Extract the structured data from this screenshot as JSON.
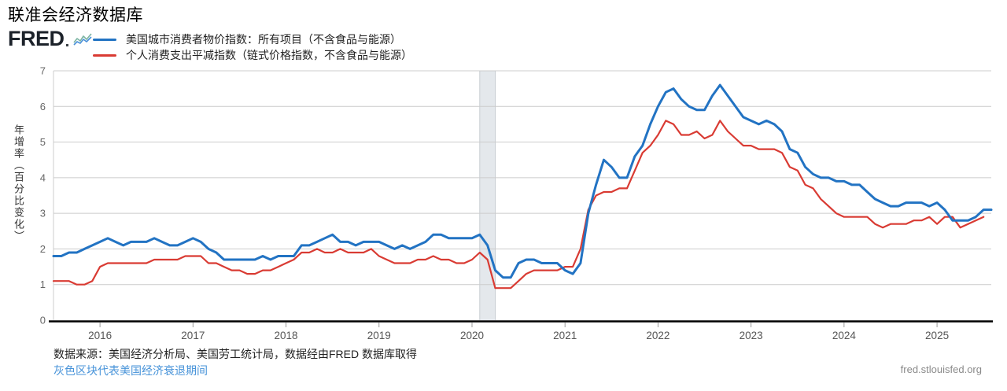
{
  "header": {
    "title": "联准会经济数据库",
    "logo_text": "FRED"
  },
  "legend": {
    "items": [
      {
        "label": "美国城市消费者物价指数：所有项目（不含食品与能源）",
        "color": "#2273c3"
      },
      {
        "label": "个人消费支出平减指数（链式价格指数，不含食品与能源）",
        "color": "#d93b33"
      }
    ]
  },
  "footer": {
    "source": "数据来源：美国经济分析局、美国劳工统计局，数据经由FRED 数据库取得",
    "recession_note": "灰色区块代表美国经济衰退期间",
    "site": "fred.stlouisfed.org"
  },
  "colors": {
    "band_fill": "#e4e8ec",
    "band_edge": "#c8cdd2",
    "grid": "#cccccc",
    "axis": "#000000",
    "tick_text": "#666666",
    "x_tick_text": "#555555",
    "link": "#4793d9"
  },
  "chart_data": {
    "type": "line",
    "title": "联准会经济数据库",
    "xlabel": "",
    "ylabel": "年增率（百分比变化）",
    "ylim": [
      0,
      7
    ],
    "yticks": [
      0,
      1,
      2,
      3,
      4,
      5,
      6,
      7
    ],
    "xlim": [
      2015.5,
      2025.583
    ],
    "xticks": [
      2016,
      2017,
      2018,
      2019,
      2020,
      2021,
      2022,
      2023,
      2024,
      2025
    ],
    "grid": true,
    "legend_position": "top-left",
    "frequency": "monthly",
    "recession_bands": [
      {
        "start": 2020.083,
        "end": 2020.25
      }
    ],
    "recession_note": "灰色区块代表美国经济衰退期间",
    "series": [
      {
        "name": "美国城市消费者物价指数：所有项目（不含食品与能源）",
        "color": "#2273c3",
        "start": 2015.5,
        "start_label": "2015-07",
        "end_label": "2025-08",
        "values": [
          1.8,
          1.8,
          1.9,
          1.9,
          2.0,
          2.1,
          2.2,
          2.3,
          2.2,
          2.1,
          2.2,
          2.2,
          2.2,
          2.3,
          2.2,
          2.1,
          2.1,
          2.2,
          2.3,
          2.2,
          2.0,
          1.9,
          1.7,
          1.7,
          1.7,
          1.7,
          1.7,
          1.8,
          1.7,
          1.8,
          1.8,
          1.8,
          2.1,
          2.1,
          2.2,
          2.3,
          2.4,
          2.2,
          2.2,
          2.1,
          2.2,
          2.2,
          2.2,
          2.1,
          2.0,
          2.1,
          2.0,
          2.1,
          2.2,
          2.4,
          2.4,
          2.3,
          2.3,
          2.3,
          2.3,
          2.4,
          2.1,
          1.4,
          1.2,
          1.2,
          1.6,
          1.7,
          1.7,
          1.6,
          1.6,
          1.6,
          1.4,
          1.3,
          1.6,
          3.0,
          3.8,
          4.5,
          4.3,
          4.0,
          4.0,
          4.6,
          4.9,
          5.5,
          6.0,
          6.4,
          6.5,
          6.2,
          6.0,
          5.9,
          5.9,
          6.3,
          6.6,
          6.3,
          6.0,
          5.7,
          5.6,
          5.5,
          5.6,
          5.5,
          5.3,
          4.8,
          4.7,
          4.3,
          4.1,
          4.0,
          4.0,
          3.9,
          3.9,
          3.8,
          3.8,
          3.6,
          3.4,
          3.3,
          3.2,
          3.2,
          3.3,
          3.3,
          3.3,
          3.2,
          3.3,
          3.1,
          2.8,
          2.8,
          2.8,
          2.9,
          3.1,
          3.1
        ]
      },
      {
        "name": "个人消费支出平减指数（链式价格指数，不含食品与能源）",
        "color": "#d93b33",
        "start": 2015.5,
        "start_label": "2015-07",
        "end_label": "2025-07",
        "values": [
          1.1,
          1.1,
          1.1,
          1.0,
          1.0,
          1.1,
          1.5,
          1.6,
          1.6,
          1.6,
          1.6,
          1.6,
          1.6,
          1.7,
          1.7,
          1.7,
          1.7,
          1.8,
          1.8,
          1.8,
          1.6,
          1.6,
          1.5,
          1.4,
          1.4,
          1.3,
          1.3,
          1.4,
          1.4,
          1.5,
          1.6,
          1.7,
          1.9,
          1.9,
          2.0,
          1.9,
          1.9,
          2.0,
          1.9,
          1.9,
          1.9,
          2.0,
          1.8,
          1.7,
          1.6,
          1.6,
          1.6,
          1.7,
          1.7,
          1.8,
          1.7,
          1.7,
          1.6,
          1.6,
          1.7,
          1.9,
          1.7,
          0.9,
          0.9,
          0.9,
          1.1,
          1.3,
          1.4,
          1.4,
          1.4,
          1.4,
          1.5,
          1.5,
          2.0,
          3.1,
          3.5,
          3.6,
          3.6,
          3.7,
          3.7,
          4.2,
          4.7,
          4.9,
          5.2,
          5.6,
          5.5,
          5.2,
          5.2,
          5.3,
          5.1,
          5.2,
          5.6,
          5.3,
          5.1,
          4.9,
          4.9,
          4.8,
          4.8,
          4.8,
          4.7,
          4.3,
          4.2,
          3.8,
          3.7,
          3.4,
          3.2,
          3.0,
          2.9,
          2.9,
          2.9,
          2.9,
          2.7,
          2.6,
          2.7,
          2.7,
          2.7,
          2.8,
          2.8,
          2.9,
          2.7,
          2.9,
          2.9,
          2.6,
          2.7,
          2.8,
          2.9
        ]
      }
    ]
  }
}
